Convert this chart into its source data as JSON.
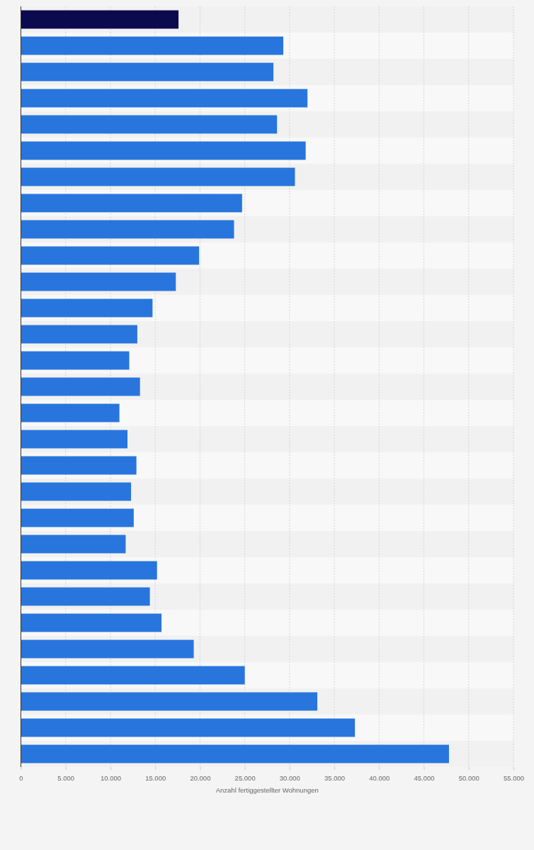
{
  "chart_data": {
    "type": "bar",
    "orientation": "horizontal",
    "xlabel": "Anzahl fertiggestellter Wohnungen",
    "categories": [
      null,
      null,
      null,
      null,
      null,
      null,
      null,
      null,
      null,
      null,
      null,
      null,
      null,
      null,
      null,
      null,
      null,
      null,
      null,
      null,
      null,
      null,
      null,
      null,
      null,
      null,
      null,
      null,
      null
    ],
    "values": [
      17600,
      29300,
      28200,
      32000,
      28600,
      31800,
      30600,
      24700,
      23800,
      19900,
      17300,
      14700,
      13000,
      12100,
      13300,
      11000,
      11900,
      12900,
      12300,
      12600,
      11700,
      15200,
      14400,
      15700,
      19300,
      25000,
      33100,
      37300,
      47800
    ],
    "colors": [
      "#0c0a4e",
      "#2876dd",
      "#2876dd",
      "#2876dd",
      "#2876dd",
      "#2876dd",
      "#2876dd",
      "#2876dd",
      "#2876dd",
      "#2876dd",
      "#2876dd",
      "#2876dd",
      "#2876dd",
      "#2876dd",
      "#2876dd",
      "#2876dd",
      "#2876dd",
      "#2876dd",
      "#2876dd",
      "#2876dd",
      "#2876dd",
      "#2876dd",
      "#2876dd",
      "#2876dd",
      "#2876dd",
      "#2876dd",
      "#2876dd",
      "#2876dd",
      "#2876dd"
    ],
    "xlim": [
      0,
      55000
    ],
    "xticks": [
      0,
      {
        "value": 5000,
        "label": "5.000"
      },
      {
        "value": 10000,
        "label": "10.000"
      },
      {
        "value": 15000,
        "label": "15.000"
      },
      {
        "value": 20000,
        "label": "20.000"
      },
      {
        "value": 25000,
        "label": "25.000"
      },
      {
        "value": 30000,
        "label": "30.000"
      },
      {
        "value": 35000,
        "label": "35.000"
      },
      {
        "value": 40000,
        "label": "40.000"
      },
      {
        "value": 45000,
        "label": "45.000"
      },
      {
        "value": 50000,
        "label": "50.000"
      },
      {
        "value": 55000,
        "label": "55.000"
      }
    ],
    "grid": "x",
    "tick_labels": "x"
  }
}
